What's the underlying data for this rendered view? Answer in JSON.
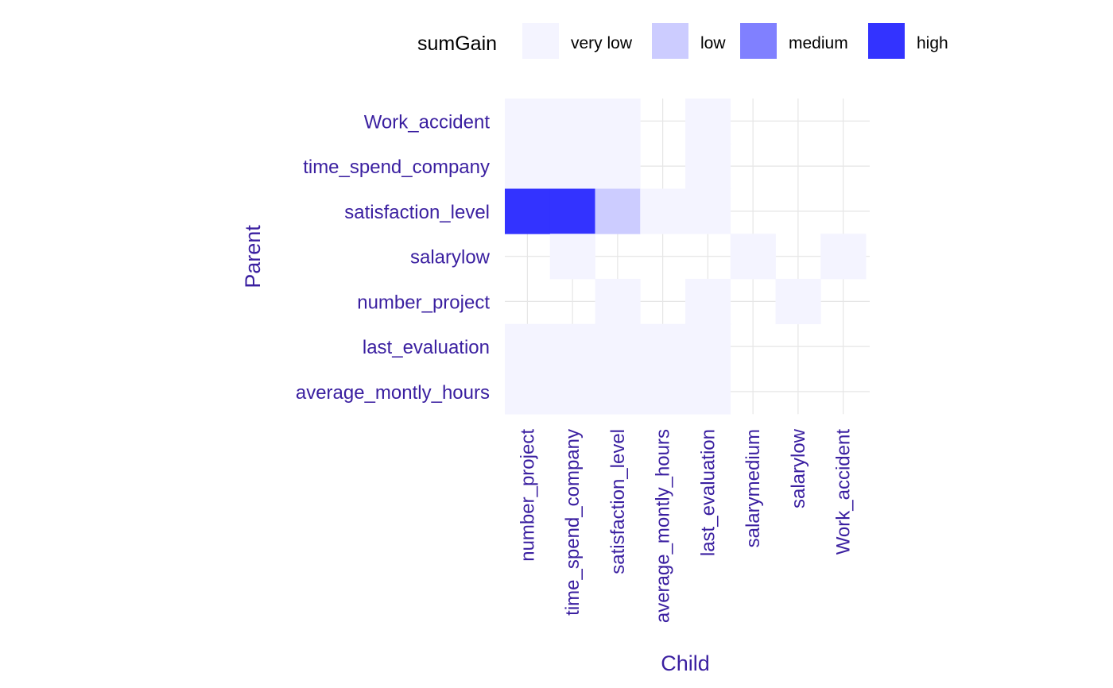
{
  "chart_data": {
    "type": "heatmap",
    "title": "",
    "xlabel": "Child",
    "ylabel": "Parent",
    "x_categories": [
      "number_project",
      "time_spend_company",
      "satisfaction_level",
      "average_montly_hours",
      "last_evaluation",
      "salarymedium",
      "salarylow",
      "Work_accident"
    ],
    "y_categories": [
      "Work_accident",
      "time_spend_company",
      "satisfaction_level",
      "salarylow",
      "number_project",
      "last_evaluation",
      "average_montly_hours"
    ],
    "legend": {
      "title": "sumGain",
      "position": "top",
      "levels": [
        {
          "label": "very low",
          "color": "#f4f4ff"
        },
        {
          "label": "low",
          "color": "#ccccff"
        },
        {
          "label": "medium",
          "color": "#8080ff"
        },
        {
          "label": "high",
          "color": "#3333ff"
        }
      ]
    },
    "cells": [
      {
        "parent": "Work_accident",
        "child": "number_project",
        "level": "very low"
      },
      {
        "parent": "Work_accident",
        "child": "time_spend_company",
        "level": "very low"
      },
      {
        "parent": "Work_accident",
        "child": "satisfaction_level",
        "level": "very low"
      },
      {
        "parent": "Work_accident",
        "child": "last_evaluation",
        "level": "very low"
      },
      {
        "parent": "time_spend_company",
        "child": "number_project",
        "level": "very low"
      },
      {
        "parent": "time_spend_company",
        "child": "time_spend_company",
        "level": "very low"
      },
      {
        "parent": "time_spend_company",
        "child": "satisfaction_level",
        "level": "very low"
      },
      {
        "parent": "time_spend_company",
        "child": "last_evaluation",
        "level": "very low"
      },
      {
        "parent": "satisfaction_level",
        "child": "number_project",
        "level": "high"
      },
      {
        "parent": "satisfaction_level",
        "child": "time_spend_company",
        "level": "high"
      },
      {
        "parent": "satisfaction_level",
        "child": "satisfaction_level",
        "level": "low"
      },
      {
        "parent": "satisfaction_level",
        "child": "average_montly_hours",
        "level": "very low"
      },
      {
        "parent": "satisfaction_level",
        "child": "last_evaluation",
        "level": "very low"
      },
      {
        "parent": "salarylow",
        "child": "time_spend_company",
        "level": "very low"
      },
      {
        "parent": "salarylow",
        "child": "salarymedium",
        "level": "very low"
      },
      {
        "parent": "salarylow",
        "child": "Work_accident",
        "level": "very low"
      },
      {
        "parent": "number_project",
        "child": "satisfaction_level",
        "level": "very low"
      },
      {
        "parent": "number_project",
        "child": "last_evaluation",
        "level": "very low"
      },
      {
        "parent": "number_project",
        "child": "salarylow",
        "level": "very low"
      },
      {
        "parent": "last_evaluation",
        "child": "number_project",
        "level": "very low"
      },
      {
        "parent": "last_evaluation",
        "child": "time_spend_company",
        "level": "very low"
      },
      {
        "parent": "last_evaluation",
        "child": "satisfaction_level",
        "level": "very low"
      },
      {
        "parent": "last_evaluation",
        "child": "average_montly_hours",
        "level": "very low"
      },
      {
        "parent": "last_evaluation",
        "child": "last_evaluation",
        "level": "very low"
      },
      {
        "parent": "average_montly_hours",
        "child": "number_project",
        "level": "very low"
      },
      {
        "parent": "average_montly_hours",
        "child": "time_spend_company",
        "level": "very low"
      },
      {
        "parent": "average_montly_hours",
        "child": "satisfaction_level",
        "level": "very low"
      },
      {
        "parent": "average_montly_hours",
        "child": "average_montly_hours",
        "level": "very low"
      },
      {
        "parent": "average_montly_hours",
        "child": "last_evaluation",
        "level": "very low"
      }
    ],
    "grid": true
  },
  "colors": {
    "axis_text": "#3a1fa0",
    "gridline": "#e6e6e6"
  }
}
